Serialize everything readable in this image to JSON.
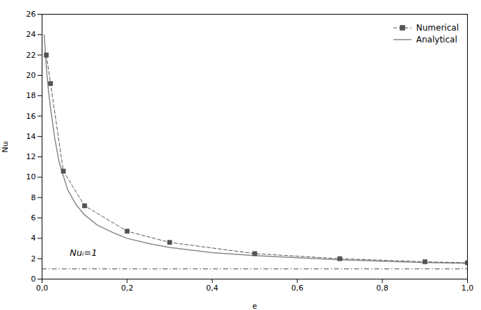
{
  "chart_data": {
    "type": "line",
    "xlabel": "e",
    "ylabel": "Nuᵢ",
    "xlim": [
      0.0,
      1.0
    ],
    "ylim": [
      0,
      26
    ],
    "xticks": [
      {
        "value": 0.0,
        "label": "0,0"
      },
      {
        "value": 0.2,
        "label": "0,2"
      },
      {
        "value": 0.4,
        "label": "0,4"
      },
      {
        "value": 0.6,
        "label": "0,6"
      },
      {
        "value": 0.8,
        "label": "0,8"
      },
      {
        "value": 1.0,
        "label": "1,0"
      }
    ],
    "yticks": [
      0,
      2,
      4,
      6,
      8,
      10,
      12,
      14,
      16,
      18,
      20,
      22,
      24,
      26
    ],
    "grid": false,
    "legend": "upper right",
    "series": [
      {
        "name": "Numerical",
        "color": "#555555",
        "marker": "square",
        "line_style": "dashed",
        "x": [
          0.01,
          0.02,
          0.05,
          0.1,
          0.2,
          0.3,
          0.5,
          0.7,
          0.9,
          1.0
        ],
        "values": [
          22.0,
          19.2,
          10.6,
          7.2,
          4.7,
          3.6,
          2.5,
          2.0,
          1.7,
          1.6
        ]
      },
      {
        "name": "Analytical",
        "color": "#888888",
        "line_style": "solid",
        "x": [
          0.005,
          0.008,
          0.01,
          0.015,
          0.02,
          0.03,
          0.04,
          0.06,
          0.08,
          0.1,
          0.13,
          0.17,
          0.2,
          0.25,
          0.3,
          0.4,
          0.5,
          0.6,
          0.7,
          0.8,
          0.9,
          1.0
        ],
        "values": [
          24.0,
          22.2,
          20.8,
          18.5,
          16.8,
          13.8,
          11.5,
          8.8,
          7.3,
          6.3,
          5.3,
          4.5,
          4.0,
          3.5,
          3.1,
          2.6,
          2.3,
          2.1,
          1.9,
          1.75,
          1.62,
          1.55
        ]
      }
    ],
    "reference_lines": [
      {
        "y": 1.0,
        "color": "#444444",
        "line_style": "dashdot"
      }
    ],
    "annotations": [
      {
        "text": "Nuᵢ=1",
        "x": 0.065,
        "y": 2.3
      }
    ]
  }
}
